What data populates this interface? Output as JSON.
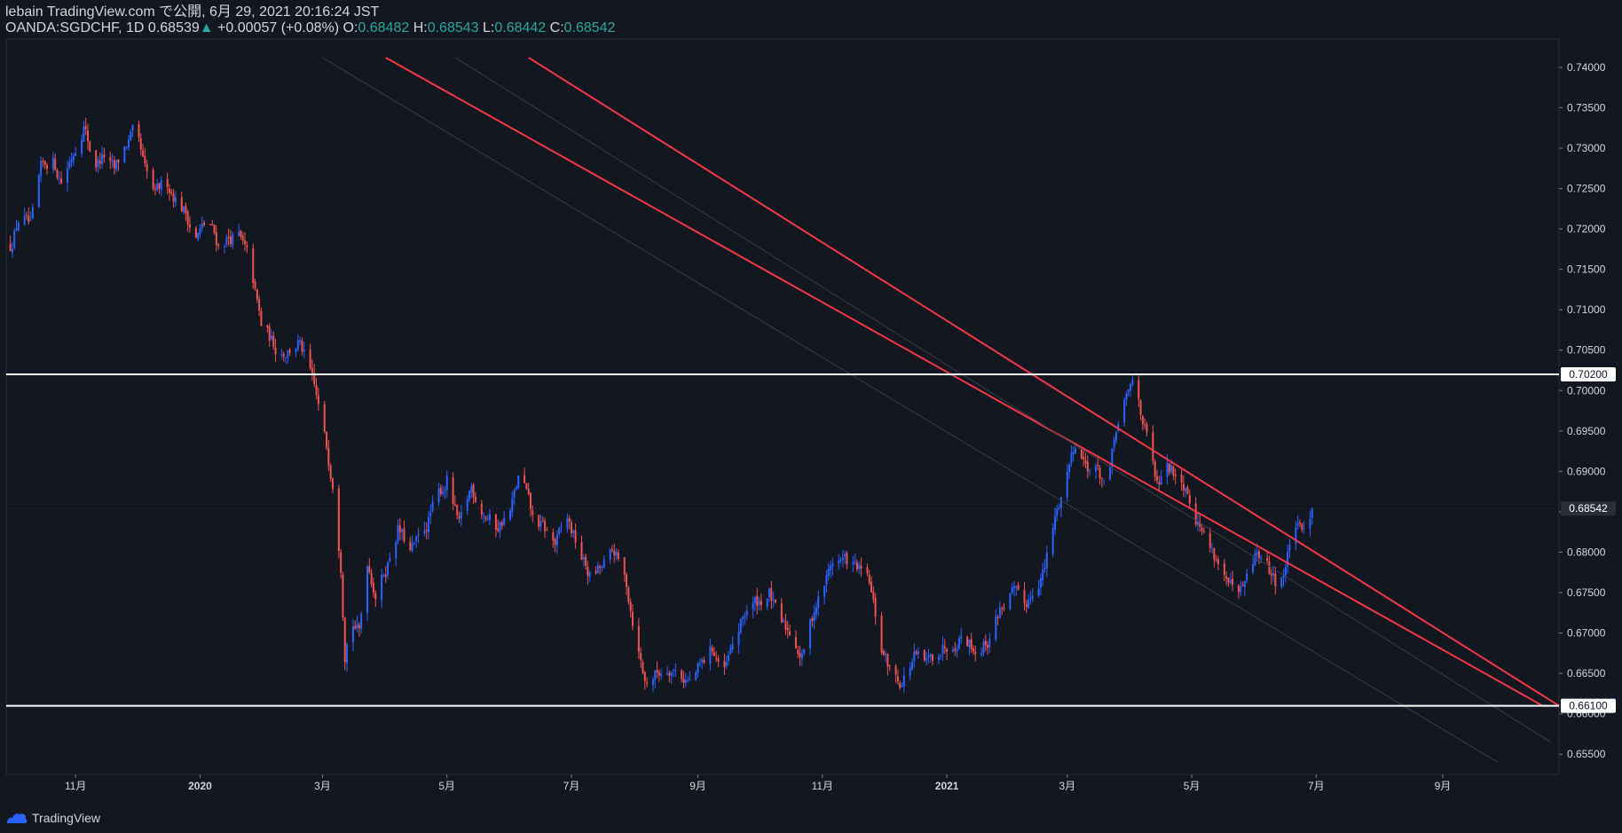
{
  "header": {
    "author": "lebain",
    "published": "TradingView.com で公開, 6月 29, 2021 20:16:24 JST",
    "symbol": "OANDA:SGDCHF, 1D",
    "last": "0.68539",
    "change_arrow": "▲",
    "change": "+0.00057 (+0.08%)",
    "o_label": "O:",
    "o_value": "0.68482",
    "h_label": "H:",
    "h_value": "0.68543",
    "l_label": "L:",
    "l_value": "0.68442",
    "c_label": "C:",
    "c_value": "0.68542"
  },
  "footer": {
    "brand": "TradingView",
    "logo_icon": "tradingview-logo-icon"
  },
  "colors": {
    "bg": "#131722",
    "up": "#2962ff",
    "down": "#ef5350",
    "text": "#d1d4dc",
    "channel": "#f23645",
    "level": "#ffffff"
  },
  "chart_data": {
    "type": "candlestick",
    "symbol": "OANDA:SGDCHF",
    "interval": "1D",
    "x_range": [
      "2019-09-28",
      "2021-10-28"
    ],
    "ylim": [
      0.6525,
      0.7435
    ],
    "y_ticks": [
      "0.74000",
      "0.73500",
      "0.73000",
      "0.72500",
      "0.72000",
      "0.71500",
      "0.71000",
      "0.70500",
      "0.70000",
      "0.69500",
      "0.69000",
      "0.68500",
      "0.68000",
      "0.67500",
      "0.67000",
      "0.66500",
      "0.66000",
      "0.65500"
    ],
    "x_ticks": [
      {
        "date": "2019-11-01",
        "label": "11月"
      },
      {
        "date": "2020-01-01",
        "label": "2020"
      },
      {
        "date": "2020-03-01",
        "label": "3月"
      },
      {
        "date": "2020-05-01",
        "label": "5月"
      },
      {
        "date": "2020-07-01",
        "label": "7月"
      },
      {
        "date": "2020-09-01",
        "label": "9月"
      },
      {
        "date": "2020-11-01",
        "label": "11月"
      },
      {
        "date": "2021-01-01",
        "label": "2021"
      },
      {
        "date": "2021-03-01",
        "label": "3月"
      },
      {
        "date": "2021-05-01",
        "label": "5月"
      },
      {
        "date": "2021-07-01",
        "label": "7月"
      },
      {
        "date": "2021-09-01",
        "label": "9月"
      }
    ],
    "close_path": [
      [
        "2019-09-30",
        0.718
      ],
      [
        "2019-10-05",
        0.722
      ],
      [
        "2019-10-10",
        0.72
      ],
      [
        "2019-10-15",
        0.727
      ],
      [
        "2019-10-20",
        0.729
      ],
      [
        "2019-10-25",
        0.726
      ],
      [
        "2019-10-30",
        0.729
      ],
      [
        "2019-11-05",
        0.733
      ],
      [
        "2019-11-10",
        0.728
      ],
      [
        "2019-11-15",
        0.729
      ],
      [
        "2019-11-20",
        0.727
      ],
      [
        "2019-11-25",
        0.73
      ],
      [
        "2019-11-30",
        0.732
      ],
      [
        "2019-12-05",
        0.727
      ],
      [
        "2019-12-10",
        0.724
      ],
      [
        "2019-12-15",
        0.726
      ],
      [
        "2019-12-20",
        0.724
      ],
      [
        "2019-12-25",
        0.722
      ],
      [
        "2019-12-30",
        0.719
      ],
      [
        "2020-01-05",
        0.721
      ],
      [
        "2020-01-10",
        0.718
      ],
      [
        "2020-01-15",
        0.719
      ],
      [
        "2020-01-20",
        0.719
      ],
      [
        "2020-01-25",
        0.716
      ],
      [
        "2020-01-31",
        0.708
      ],
      [
        "2020-02-03",
        0.707
      ],
      [
        "2020-02-08",
        0.705
      ],
      [
        "2020-02-13",
        0.705
      ],
      [
        "2020-02-18",
        0.706
      ],
      [
        "2020-02-23",
        0.703
      ],
      [
        "2020-02-27",
        0.699
      ],
      [
        "2020-03-02",
        0.694
      ],
      [
        "2020-03-06",
        0.689
      ],
      [
        "2020-03-10",
        0.679
      ],
      [
        "2020-03-12",
        0.668
      ],
      [
        "2020-03-15",
        0.672
      ],
      [
        "2020-03-19",
        0.67
      ],
      [
        "2020-03-23",
        0.679
      ],
      [
        "2020-03-27",
        0.675
      ],
      [
        "2020-04-01",
        0.678
      ],
      [
        "2020-04-07",
        0.683
      ],
      [
        "2020-04-13",
        0.68
      ],
      [
        "2020-04-19",
        0.682
      ],
      [
        "2020-04-25",
        0.686
      ],
      [
        "2020-05-01",
        0.689
      ],
      [
        "2020-05-07",
        0.683
      ],
      [
        "2020-05-13",
        0.688
      ],
      [
        "2020-05-19",
        0.685
      ],
      [
        "2020-05-25",
        0.683
      ],
      [
        "2020-06-01",
        0.685
      ],
      [
        "2020-06-06",
        0.69
      ],
      [
        "2020-06-12",
        0.684
      ],
      [
        "2020-06-17",
        0.683
      ],
      [
        "2020-06-23",
        0.681
      ],
      [
        "2020-06-29",
        0.684
      ],
      [
        "2020-07-05",
        0.68
      ],
      [
        "2020-07-10",
        0.677
      ],
      [
        "2020-07-16",
        0.678
      ],
      [
        "2020-07-22",
        0.68
      ],
      [
        "2020-07-28",
        0.676
      ],
      [
        "2020-08-02",
        0.669
      ],
      [
        "2020-08-06",
        0.664
      ],
      [
        "2020-08-12",
        0.665
      ],
      [
        "2020-08-18",
        0.666
      ],
      [
        "2020-08-23",
        0.665
      ],
      [
        "2020-08-28",
        0.664
      ],
      [
        "2020-09-03",
        0.666
      ],
      [
        "2020-09-08",
        0.668
      ],
      [
        "2020-09-14",
        0.665
      ],
      [
        "2020-09-19",
        0.669
      ],
      [
        "2020-09-25",
        0.673
      ],
      [
        "2020-10-01",
        0.674
      ],
      [
        "2020-10-06",
        0.675
      ],
      [
        "2020-10-11",
        0.671
      ],
      [
        "2020-10-17",
        0.67
      ],
      [
        "2020-10-22",
        0.667
      ],
      [
        "2020-10-28",
        0.673
      ],
      [
        "2020-11-02",
        0.676
      ],
      [
        "2020-11-06",
        0.679
      ],
      [
        "2020-11-12",
        0.679
      ],
      [
        "2020-11-18",
        0.678
      ],
      [
        "2020-11-24",
        0.676
      ],
      [
        "2020-11-30",
        0.668
      ],
      [
        "2020-12-05",
        0.665
      ],
      [
        "2020-12-10",
        0.664
      ],
      [
        "2020-12-16",
        0.667
      ],
      [
        "2020-12-22",
        0.666
      ],
      [
        "2020-12-28",
        0.668
      ],
      [
        "2021-01-03",
        0.669
      ],
      [
        "2021-01-09",
        0.67
      ],
      [
        "2021-01-15",
        0.668
      ],
      [
        "2021-01-21",
        0.669
      ],
      [
        "2021-01-27",
        0.673
      ],
      [
        "2021-02-02",
        0.675
      ],
      [
        "2021-02-08",
        0.673
      ],
      [
        "2021-02-13",
        0.676
      ],
      [
        "2021-02-18",
        0.678
      ],
      [
        "2021-02-23",
        0.684
      ],
      [
        "2021-02-28",
        0.689
      ],
      [
        "2021-03-05",
        0.694
      ],
      [
        "2021-03-10",
        0.691
      ],
      [
        "2021-03-16",
        0.69
      ],
      [
        "2021-03-21",
        0.688
      ],
      [
        "2021-03-25",
        0.695
      ],
      [
        "2021-03-29",
        0.698
      ],
      [
        "2021-04-02",
        0.701
      ],
      [
        "2021-04-05",
        0.699
      ],
      [
        "2021-04-09",
        0.694
      ],
      [
        "2021-04-14",
        0.688
      ],
      [
        "2021-04-19",
        0.69
      ],
      [
        "2021-04-24",
        0.69
      ],
      [
        "2021-04-29",
        0.688
      ],
      [
        "2021-05-04",
        0.684
      ],
      [
        "2021-05-09",
        0.681
      ],
      [
        "2021-05-14",
        0.679
      ],
      [
        "2021-05-19",
        0.676
      ],
      [
        "2021-05-24",
        0.674
      ],
      [
        "2021-05-29",
        0.677
      ],
      [
        "2021-06-02",
        0.68
      ],
      [
        "2021-06-07",
        0.678
      ],
      [
        "2021-06-12",
        0.676
      ],
      [
        "2021-06-16",
        0.678
      ],
      [
        "2021-06-20",
        0.684
      ],
      [
        "2021-06-24",
        0.682
      ],
      [
        "2021-06-29",
        0.6854
      ]
    ],
    "horizontal_lines": [
      {
        "price": 0.702,
        "label": "0.70200"
      },
      {
        "price": 0.661,
        "label": "0.66100"
      }
    ],
    "last_price": {
      "price": 0.68542,
      "label": "0.68542"
    },
    "channel_lines": [
      {
        "points": [
          [
            "2020-04-01",
            0.7412
          ],
          [
            "2021-10-20",
            0.661
          ]
        ]
      },
      {
        "points": [
          [
            "2020-06-10",
            0.7412
          ],
          [
            "2021-10-28",
            0.661
          ]
        ]
      },
      {
        "points": [
          [
            "2020-05-05",
            0.7412
          ],
          [
            "2021-10-24",
            0.6565
          ]
        ]
      },
      {
        "points": [
          [
            "2020-03-01",
            0.7412
          ],
          [
            "2021-09-28",
            0.654
          ]
        ]
      }
    ]
  }
}
